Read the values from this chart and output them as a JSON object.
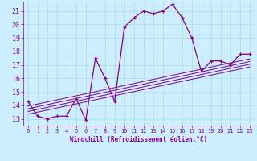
{
  "xlabel": "Windchill (Refroidissement éolien,°C)",
  "bg_color": "#cceeff",
  "line_color": "#880088",
  "xlim": [
    -0.5,
    23.5
  ],
  "ylim": [
    12.5,
    21.7
  ],
  "xticks": [
    0,
    1,
    2,
    3,
    4,
    5,
    6,
    7,
    8,
    9,
    10,
    11,
    12,
    13,
    14,
    15,
    16,
    17,
    18,
    19,
    20,
    21,
    22,
    23
  ],
  "yticks": [
    13,
    14,
    15,
    16,
    17,
    18,
    19,
    20,
    21
  ],
  "main_x": [
    0,
    1,
    2,
    3,
    4,
    5,
    6,
    7,
    8,
    9,
    10,
    11,
    12,
    13,
    14,
    15,
    16,
    17,
    18,
    19,
    20,
    21,
    22,
    23
  ],
  "main_y": [
    14.3,
    13.2,
    13.0,
    13.2,
    13.2,
    14.5,
    12.9,
    17.5,
    16.0,
    14.3,
    19.8,
    20.5,
    21.0,
    20.8,
    21.0,
    21.5,
    20.5,
    19.0,
    16.5,
    17.3,
    17.3,
    17.0,
    17.8,
    17.8
  ],
  "fit_lines": [
    {
      "x": [
        0,
        23
      ],
      "y": [
        13.55,
        17.05
      ]
    },
    {
      "x": [
        0,
        23
      ],
      "y": [
        13.35,
        16.85
      ]
    },
    {
      "x": [
        0,
        23
      ],
      "y": [
        13.75,
        17.25
      ]
    },
    {
      "x": [
        0,
        23
      ],
      "y": [
        13.95,
        17.45
      ]
    }
  ],
  "grid_color": "#aadddd",
  "tick_color": "#880088",
  "xlabel_fontsize": 5.5,
  "ytick_fontsize": 6.0,
  "xtick_fontsize": 5.0
}
